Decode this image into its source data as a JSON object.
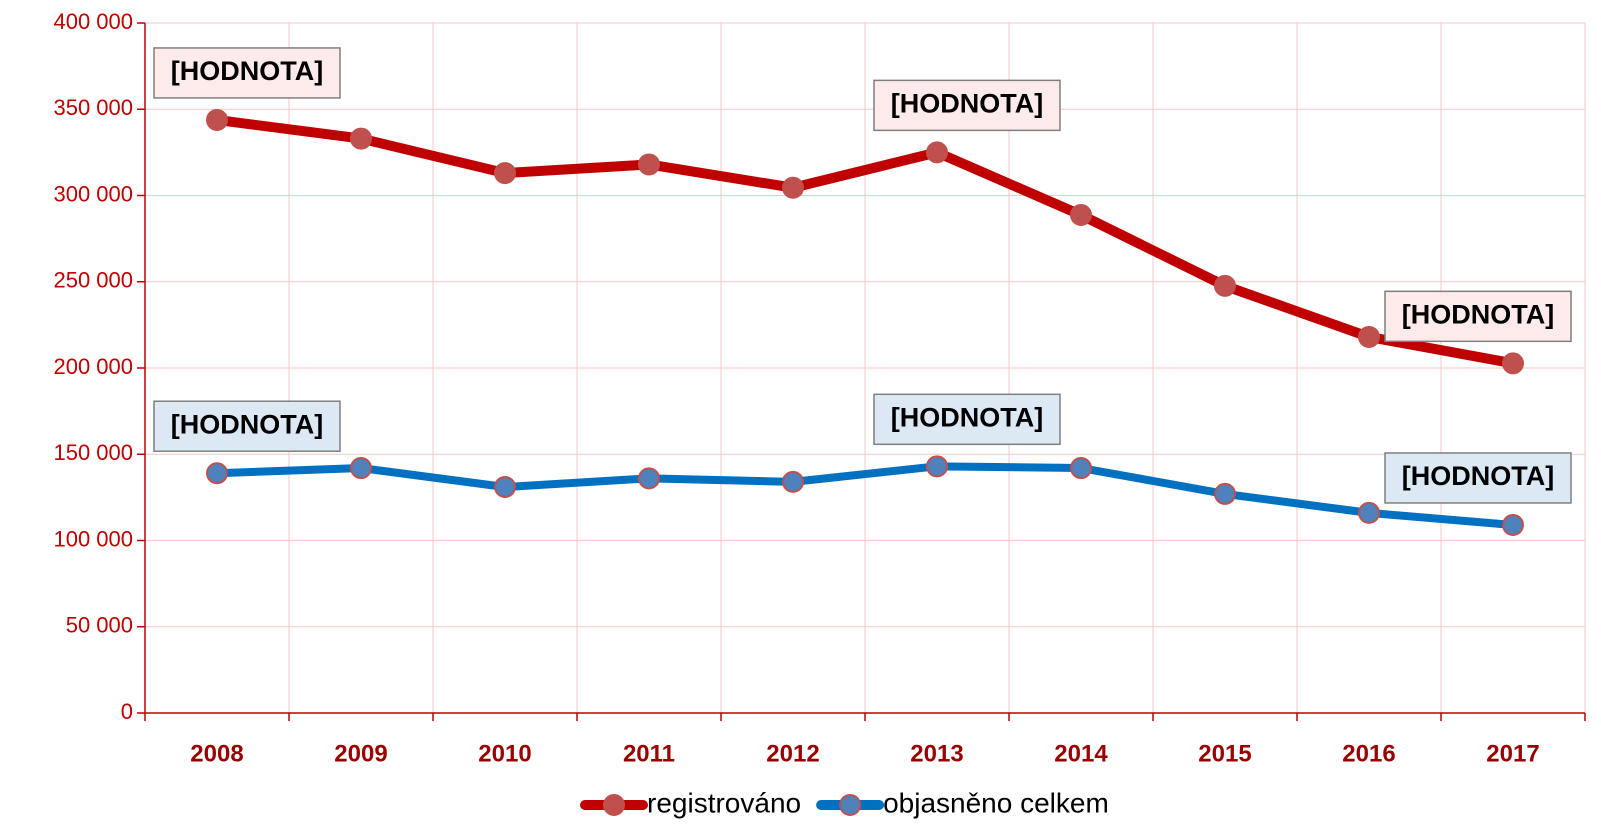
{
  "chart_data": {
    "type": "line",
    "categories": [
      "2008",
      "2009",
      "2010",
      "2011",
      "2012",
      "2013",
      "2014",
      "2015",
      "2016",
      "2017"
    ],
    "series": [
      {
        "name": "registrováno",
        "color": "#c00000",
        "marker_color": "#c0504d",
        "label_fill": "#fdeaea",
        "values": [
          343800,
          333000,
          313000,
          318000,
          304500,
          325000,
          288700,
          247600,
          218000,
          202700
        ],
        "value_labels": [
          "[HODNOTA]",
          null,
          null,
          null,
          null,
          "[HODNOTA]",
          null,
          null,
          null,
          "[HODNOTA]"
        ]
      },
      {
        "name": "objasněno celkem",
        "color": "#0070c0",
        "marker_color": "#4f81bd",
        "label_fill": "#dce9f5",
        "values": [
          139000,
          142000,
          131000,
          136000,
          134000,
          143000,
          142000,
          127000,
          116000,
          109000
        ],
        "value_labels": [
          "[HODNOTA]",
          null,
          null,
          null,
          null,
          "[HODNOTA]",
          null,
          null,
          null,
          "[HODNOTA]"
        ]
      }
    ],
    "ylim": [
      0,
      400000
    ],
    "yticks": [
      0,
      {
        "value": 50000,
        "label": "50 000"
      },
      {
        "value": 100000,
        "label": "100 000"
      },
      {
        "value": 150000,
        "label": "150 000"
      },
      {
        "value": 200000,
        "label": "200 000"
      },
      {
        "value": 250000,
        "label": "250 000"
      },
      {
        "value": 300000,
        "label": "300 000"
      },
      {
        "value": 350000,
        "label": "350 000"
      },
      {
        "value": 400000,
        "label": "400 000"
      }
    ],
    "grid": true,
    "legend": "bottom"
  }
}
